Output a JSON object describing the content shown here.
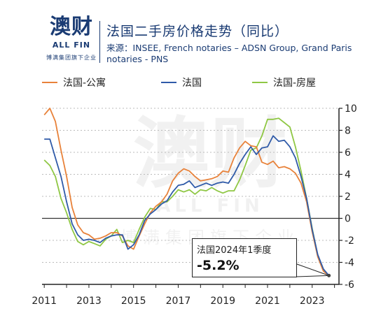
{
  "header": {
    "logo_text": "澳财",
    "logo_en": "ALL FIN",
    "logo_sub": "博满集团旗下企业",
    "title": "法国二手房价格走势（同比）",
    "source": "来源：INSEE, French notaries – ADSN Group, Grand Paris notaries - PNS"
  },
  "colors": {
    "orange": "#e8823a",
    "blue": "#2f5aa8",
    "green": "#8fc744",
    "text": "#1a3b73"
  },
  "annotation": {
    "line1": "法国2024年1季度",
    "value": "-5.2%"
  },
  "watermark": {
    "big": "澳财",
    "en": "ALL FIN",
    "sub": "博满集团旗下企业"
  },
  "chart_data": {
    "type": "line",
    "title": "法国二手房价格走势（同比）",
    "xlabel": "",
    "ylabel": "",
    "xlim": [
      2010.9,
      2024.2
    ],
    "ylim": [
      -6,
      10
    ],
    "x_ticks": [
      2011,
      2013,
      2015,
      2017,
      2019,
      2021,
      2023
    ],
    "y_ticks": [
      10,
      8,
      6,
      4,
      2,
      0,
      -2,
      -4,
      -6
    ],
    "y_axis_position": "right",
    "legend_position": "top",
    "series": [
      {
        "name": "法国-公寓",
        "color": "#e8823a",
        "points": [
          [
            2011.0,
            9.4
          ],
          [
            2011.25,
            10.0
          ],
          [
            2011.5,
            8.8
          ],
          [
            2011.75,
            6.2
          ],
          [
            2012.0,
            3.8
          ],
          [
            2012.25,
            1.0
          ],
          [
            2012.5,
            -0.6
          ],
          [
            2012.75,
            -1.3
          ],
          [
            2013.0,
            -1.5
          ],
          [
            2013.25,
            -1.9
          ],
          [
            2013.5,
            -1.8
          ],
          [
            2013.75,
            -1.6
          ],
          [
            2014.0,
            -1.3
          ],
          [
            2014.25,
            -1.3
          ],
          [
            2014.5,
            -1.6
          ],
          [
            2014.75,
            -2.5
          ],
          [
            2015.0,
            -2.8
          ],
          [
            2015.25,
            -1.6
          ],
          [
            2015.5,
            -0.5
          ],
          [
            2015.75,
            0.5
          ],
          [
            2016.0,
            1.1
          ],
          [
            2016.25,
            1.5
          ],
          [
            2016.5,
            2.2
          ],
          [
            2016.75,
            3.4
          ],
          [
            2017.0,
            4.1
          ],
          [
            2017.25,
            4.5
          ],
          [
            2017.5,
            4.3
          ],
          [
            2017.75,
            3.8
          ],
          [
            2018.0,
            3.4
          ],
          [
            2018.25,
            3.5
          ],
          [
            2018.5,
            3.6
          ],
          [
            2018.75,
            3.8
          ],
          [
            2019.0,
            4.3
          ],
          [
            2019.25,
            4.2
          ],
          [
            2019.5,
            5.5
          ],
          [
            2019.75,
            6.4
          ],
          [
            2020.0,
            7.0
          ],
          [
            2020.25,
            6.6
          ],
          [
            2020.5,
            6.5
          ],
          [
            2020.75,
            5.1
          ],
          [
            2021.0,
            4.9
          ],
          [
            2021.25,
            5.2
          ],
          [
            2021.5,
            4.6
          ],
          [
            2021.75,
            4.7
          ],
          [
            2022.0,
            4.5
          ],
          [
            2022.25,
            4.1
          ],
          [
            2022.5,
            3.2
          ],
          [
            2022.75,
            1.5
          ],
          [
            2023.0,
            -1.2
          ],
          [
            2023.25,
            -3.5
          ],
          [
            2023.5,
            -4.8
          ],
          [
            2023.75,
            -5.2
          ]
        ]
      },
      {
        "name": "法国",
        "color": "#2f5aa8",
        "points": [
          [
            2011.0,
            7.2
          ],
          [
            2011.25,
            7.2
          ],
          [
            2011.5,
            5.5
          ],
          [
            2011.75,
            3.8
          ],
          [
            2012.0,
            1.5
          ],
          [
            2012.25,
            -0.5
          ],
          [
            2012.5,
            -1.5
          ],
          [
            2012.75,
            -2.0
          ],
          [
            2013.0,
            -1.9
          ],
          [
            2013.25,
            -2.0
          ],
          [
            2013.5,
            -2.2
          ],
          [
            2013.75,
            -1.8
          ],
          [
            2014.0,
            -1.6
          ],
          [
            2014.25,
            -1.5
          ],
          [
            2014.5,
            -1.5
          ],
          [
            2014.75,
            -2.8
          ],
          [
            2015.0,
            -2.4
          ],
          [
            2015.25,
            -1.5
          ],
          [
            2015.5,
            -0.2
          ],
          [
            2015.75,
            0.4
          ],
          [
            2016.0,
            0.8
          ],
          [
            2016.25,
            1.3
          ],
          [
            2016.5,
            1.6
          ],
          [
            2016.75,
            2.4
          ],
          [
            2017.0,
            3.0
          ],
          [
            2017.25,
            3.1
          ],
          [
            2017.5,
            3.4
          ],
          [
            2017.75,
            2.8
          ],
          [
            2018.0,
            3.0
          ],
          [
            2018.25,
            3.2
          ],
          [
            2018.5,
            3.0
          ],
          [
            2018.75,
            3.2
          ],
          [
            2019.0,
            3.3
          ],
          [
            2019.25,
            3.2
          ],
          [
            2019.5,
            4.0
          ],
          [
            2019.75,
            5.0
          ],
          [
            2020.0,
            5.8
          ],
          [
            2020.25,
            6.5
          ],
          [
            2020.5,
            5.8
          ],
          [
            2020.75,
            6.4
          ],
          [
            2021.0,
            6.5
          ],
          [
            2021.25,
            7.5
          ],
          [
            2021.5,
            7.0
          ],
          [
            2021.75,
            7.1
          ],
          [
            2022.0,
            6.5
          ],
          [
            2022.25,
            5.5
          ],
          [
            2022.5,
            3.8
          ],
          [
            2022.75,
            1.8
          ],
          [
            2023.0,
            -1.0
          ],
          [
            2023.25,
            -3.3
          ],
          [
            2023.5,
            -4.6
          ],
          [
            2023.75,
            -5.2
          ]
        ]
      },
      {
        "name": "法国-房屋",
        "color": "#8fc744",
        "points": [
          [
            2011.0,
            5.3
          ],
          [
            2011.25,
            4.8
          ],
          [
            2011.5,
            3.8
          ],
          [
            2011.75,
            1.8
          ],
          [
            2012.0,
            0.5
          ],
          [
            2012.25,
            -1.0
          ],
          [
            2012.5,
            -2.1
          ],
          [
            2012.75,
            -2.4
          ],
          [
            2013.0,
            -2.1
          ],
          [
            2013.25,
            -2.3
          ],
          [
            2013.5,
            -2.5
          ],
          [
            2013.75,
            -1.9
          ],
          [
            2014.0,
            -1.6
          ],
          [
            2014.25,
            -1.0
          ],
          [
            2014.5,
            -2.2
          ],
          [
            2014.75,
            -2.0
          ],
          [
            2015.0,
            -2.2
          ],
          [
            2015.25,
            -1.0
          ],
          [
            2015.5,
            0.1
          ],
          [
            2015.75,
            0.9
          ],
          [
            2016.0,
            0.8
          ],
          [
            2016.25,
            1.5
          ],
          [
            2016.5,
            1.5
          ],
          [
            2016.75,
            2.0
          ],
          [
            2017.0,
            2.6
          ],
          [
            2017.25,
            2.4
          ],
          [
            2017.5,
            2.6
          ],
          [
            2017.75,
            2.2
          ],
          [
            2018.0,
            2.6
          ],
          [
            2018.25,
            2.5
          ],
          [
            2018.5,
            2.8
          ],
          [
            2018.75,
            2.5
          ],
          [
            2019.0,
            2.3
          ],
          [
            2019.25,
            2.5
          ],
          [
            2019.5,
            2.5
          ],
          [
            2019.75,
            3.5
          ],
          [
            2020.0,
            4.8
          ],
          [
            2020.25,
            6.2
          ],
          [
            2020.5,
            6.4
          ],
          [
            2020.75,
            7.5
          ],
          [
            2021.0,
            9.0
          ],
          [
            2021.25,
            9.0
          ],
          [
            2021.5,
            9.1
          ],
          [
            2021.75,
            8.7
          ],
          [
            2022.0,
            8.3
          ],
          [
            2022.25,
            6.5
          ],
          [
            2022.5,
            4.3
          ],
          [
            2022.75,
            1.8
          ],
          [
            2023.0,
            -0.9
          ],
          [
            2023.25,
            -3.4
          ],
          [
            2023.5,
            -4.7
          ],
          [
            2023.75,
            -5.2
          ]
        ]
      }
    ]
  }
}
